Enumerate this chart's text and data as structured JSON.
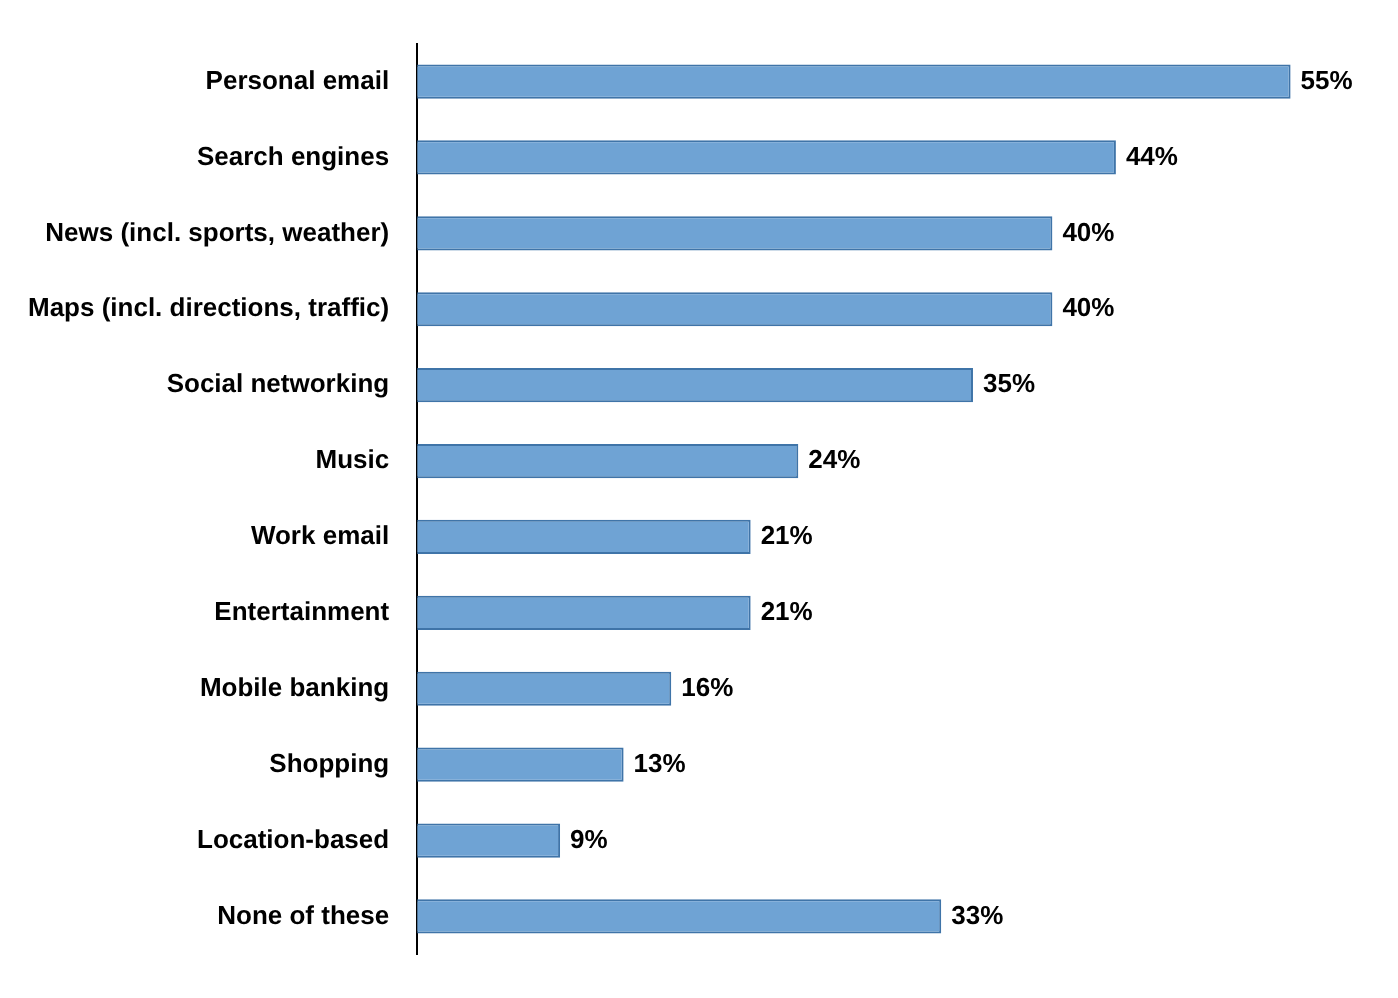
{
  "chart_data": {
    "type": "bar",
    "orientation": "horizontal",
    "categories": [
      "Personal email",
      "Search engines",
      "News (incl. sports, weather)",
      "Maps (incl. directions, traffic)",
      "Social networking",
      "Music",
      "Work email",
      "Entertainment",
      "Mobile banking",
      "Shopping",
      "Location-based",
      "None of these"
    ],
    "values": [
      55,
      44,
      40,
      40,
      35,
      24,
      21,
      21,
      16,
      13,
      9,
      33
    ],
    "value_labels": [
      "55%",
      "44%",
      "40%",
      "40%",
      "35%",
      "24%",
      "21%",
      "21%",
      "16%",
      "13%",
      "9%",
      "33%"
    ],
    "color": "#6fa3d4",
    "tick_labels": "y"
  }
}
